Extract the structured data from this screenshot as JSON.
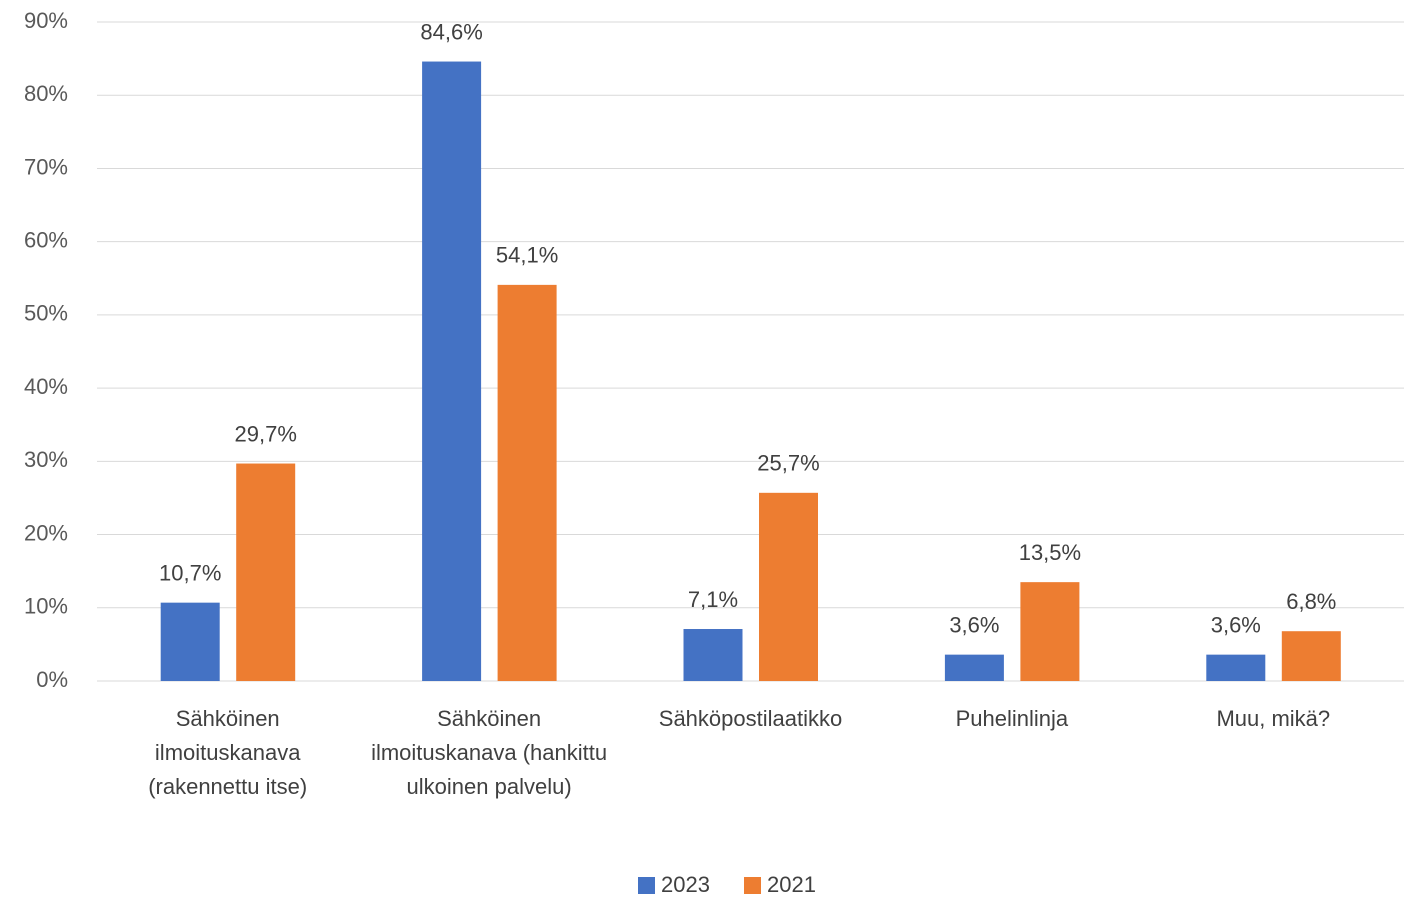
{
  "chart_data": {
    "type": "bar",
    "categories": [
      "Sähköinen ilmoituskanava (rakennettu itse)",
      "Sähköinen ilmoituskanava (hankittu ulkoinen palvelu)",
      "Sähköpostilaatikko",
      "Puhelinlinja",
      "Muu, mikä?"
    ],
    "series": [
      {
        "name": "2023",
        "color": "#4472c4",
        "values": [
          10.7,
          84.6,
          7.1,
          3.6,
          3.6
        ],
        "value_labels": [
          "10,7%",
          "84,6%",
          "7,1%",
          "3,6%",
          "3,6%"
        ]
      },
      {
        "name": "2021",
        "color": "#ed7d31",
        "values": [
          29.7,
          54.1,
          25.7,
          13.5,
          6.8
        ],
        "value_labels": [
          "29,7%",
          "54,1%",
          "25,7%",
          "13,5%",
          "6,8%"
        ]
      }
    ],
    "ylim": [
      0,
      90
    ],
    "yticks": [
      {
        "value": 0,
        "label": "0%"
      },
      {
        "value": 10,
        "label": "10%"
      },
      {
        "value": 20,
        "label": "20%"
      },
      {
        "value": 30,
        "label": "30%"
      },
      {
        "value": 40,
        "label": "40%"
      },
      {
        "value": 50,
        "label": "50%"
      },
      {
        "value": 60,
        "label": "60%"
      },
      {
        "value": 70,
        "label": "70%"
      },
      {
        "value": 80,
        "label": "80%"
      },
      {
        "value": 90,
        "label": "90%"
      }
    ],
    "grid": true,
    "legend": "bottom"
  }
}
